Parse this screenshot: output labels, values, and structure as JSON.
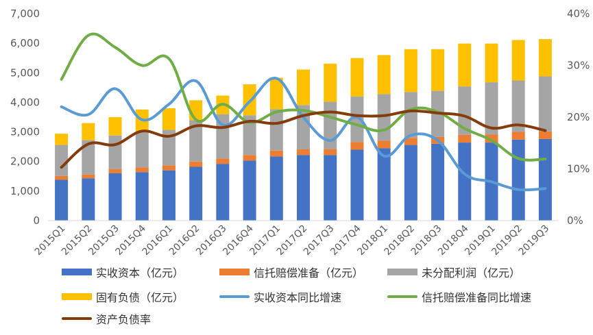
{
  "chart_data": {
    "type": "bar",
    "stacked": true,
    "categories": [
      "2015Q1",
      "2015Q2",
      "2015Q3",
      "2015Q4",
      "2016Q1",
      "2016Q2",
      "2016Q3",
      "2016Q4",
      "2017Q1",
      "2017Q2",
      "2017Q3",
      "2017Q4",
      "2018Q1",
      "2018Q2",
      "2018Q3",
      "2018Q4",
      "2019Q1",
      "2019Q2",
      "2019Q3"
    ],
    "y_left": {
      "ylim": [
        0,
        7000
      ],
      "ticks": [
        "0",
        "1,000",
        "2,000",
        "3,000",
        "4,000",
        "5,000",
        "6,000",
        "7,000"
      ]
    },
    "y_right": {
      "ylim": [
        0,
        40
      ],
      "ticks": [
        "0%",
        "10%",
        "20%",
        "30%",
        "40%"
      ]
    },
    "grid": false,
    "legend_position": "bottom",
    "series": [
      {
        "name": "实收资本（亿元）",
        "type": "bar",
        "axis": "left",
        "color": "#4472C4",
        "values": [
          1380,
          1430,
          1600,
          1640,
          1700,
          1820,
          1920,
          2030,
          2170,
          2220,
          2220,
          2400,
          2450,
          2560,
          2600,
          2640,
          2640,
          2740,
          2760
        ]
      },
      {
        "name": "信托赔偿准备（亿元）",
        "type": "bar",
        "axis": "left",
        "color": "#ED7D31",
        "values": [
          130,
          130,
          140,
          160,
          170,
          180,
          180,
          190,
          200,
          190,
          200,
          260,
          250,
          240,
          230,
          260,
          270,
          260,
          260
        ]
      },
      {
        "name": "未分配利润（亿元）",
        "type": "bar",
        "axis": "left",
        "color": "#A5A5A5",
        "values": [
          1050,
          1160,
          1140,
          1200,
          1200,
          1400,
          1500,
          1340,
          1400,
          1500,
          1600,
          1540,
          1580,
          1550,
          1560,
          1640,
          1770,
          1740,
          1860
        ]
      },
      {
        "name": "固有负债（亿元）",
        "type": "bar",
        "axis": "left",
        "color": "#FFC000",
        "values": [
          380,
          580,
          620,
          760,
          730,
          670,
          630,
          1050,
          1060,
          1200,
          1290,
          1300,
          1320,
          1450,
          1410,
          1450,
          1310,
          1370,
          1260
        ]
      },
      {
        "name": "实收资本同比增速",
        "type": "line",
        "axis": "right",
        "color": "#5B9BD5",
        "values": [
          22.0,
          20.5,
          25.5,
          19.5,
          22.5,
          27.0,
          18.5,
          23.0,
          27.5,
          20.0,
          15.5,
          20.0,
          12.5,
          16.5,
          15.5,
          9.0,
          7.5,
          6.0,
          6.2
        ]
      },
      {
        "name": "信托赔偿准备同比增速",
        "type": "line",
        "axis": "right",
        "color": "#70AD47",
        "values": [
          27.3,
          35.8,
          33.5,
          30.0,
          31.3,
          19.5,
          22.5,
          19.0,
          21.0,
          21.3,
          20.0,
          18.5,
          17.5,
          21.5,
          21.0,
          17.8,
          15.5,
          12.0,
          11.9
        ]
      },
      {
        "name": "资产负债率",
        "type": "line",
        "axis": "right",
        "color": "#843C0C",
        "values": [
          10.3,
          14.8,
          14.7,
          17.3,
          16.3,
          18.3,
          18.0,
          19.2,
          18.8,
          20.3,
          21.0,
          20.3,
          20.3,
          21.2,
          20.8,
          20.2,
          17.9,
          18.5,
          17.4
        ]
      }
    ]
  }
}
